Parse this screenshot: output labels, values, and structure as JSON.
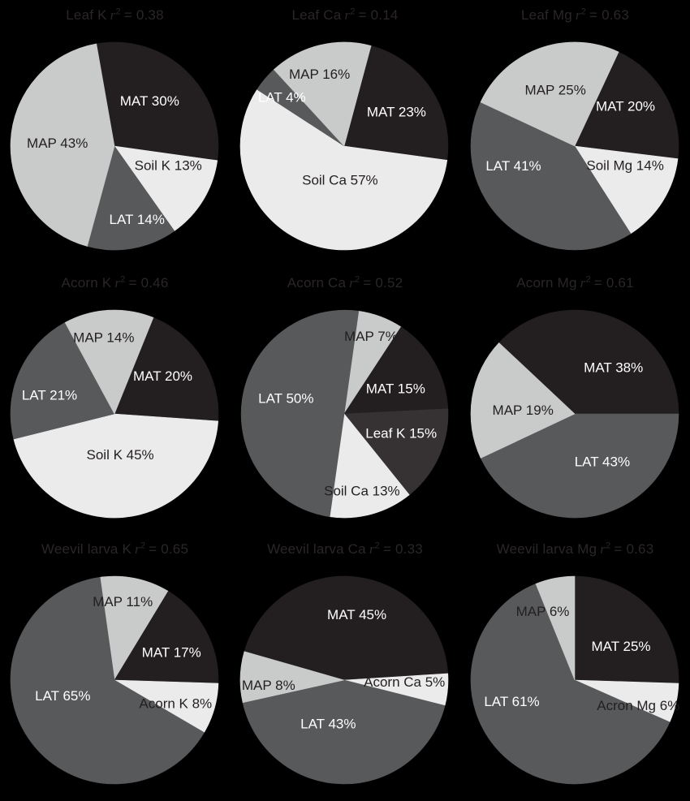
{
  "figure": {
    "background": "#000000",
    "title_color": "#2b2627",
    "label_dark_color": "#231f20",
    "label_light_color": "#ffffff"
  },
  "symbols": {
    "r": "r",
    "sup": "2"
  },
  "palette": {
    "MAT": "#231f20",
    "LAT": "#58595b",
    "MAP": "#c9caca",
    "SOIL": "#ebebec",
    "LEAFK": "#363233"
  },
  "chart_data": [
    {
      "type": "pie",
      "name": "Leaf K",
      "stat": "= 0.38",
      "start_angle": -10,
      "slices": [
        {
          "label": "MAT 30%",
          "value": 30,
          "color": "#231f20",
          "text_color": "#ffffff",
          "label_r": 0.55,
          "label_angle": 38
        },
        {
          "label": "Soil K 13%",
          "value": 13,
          "color": "#ebebec",
          "text_color": "#231f20",
          "label_r": 0.55,
          "label_angle": 110
        },
        {
          "label": "LAT 14%",
          "value": 14,
          "color": "#58595b",
          "text_color": "#ffffff",
          "label_r": 0.74,
          "label_angle": 163
        },
        {
          "label": "MAP 43%",
          "value": 43,
          "color": "#c9caca",
          "text_color": "#231f20",
          "label_r": 0.55,
          "label_angle": 273
        }
      ]
    },
    {
      "type": "pie",
      "name": "Leaf Ca",
      "stat": "= 0.14",
      "start_angle": 15,
      "slices": [
        {
          "label": "MAT 23%",
          "value": 23,
          "color": "#231f20",
          "text_color": "#ffffff",
          "label_r": 0.6,
          "label_angle": 57
        },
        {
          "label": "Soil Ca 57%",
          "value": 57,
          "color": "#ebebec",
          "text_color": "#231f20",
          "label_r": 0.33,
          "label_angle": 187
        },
        {
          "label": "LAT 4%",
          "value": 4,
          "color": "#58595b",
          "text_color": "#ffffff",
          "label_r": 0.76,
          "label_angle": 308
        },
        {
          "label": "MAP 16%",
          "value": 16,
          "color": "#c9caca",
          "text_color": "#231f20",
          "label_r": 0.73,
          "label_angle": 341
        }
      ]
    },
    {
      "type": "pie",
      "name": "Leaf Mg",
      "stat": "= 0.63",
      "start_angle": 25,
      "slices": [
        {
          "label": "MAT 20%",
          "value": 20,
          "color": "#231f20",
          "text_color": "#ffffff",
          "label_r": 0.62,
          "label_angle": 52
        },
        {
          "label": "Soil Mg 14%",
          "value": 14,
          "color": "#ebebec",
          "text_color": "#231f20",
          "label_r": 0.52,
          "label_angle": 111
        },
        {
          "label": "LAT 41%",
          "value": 41,
          "color": "#58595b",
          "text_color": "#ffffff",
          "label_r": 0.62,
          "label_angle": 252
        },
        {
          "label": "MAP 25%",
          "value": 25,
          "color": "#c9caca",
          "text_color": "#231f20",
          "label_r": 0.57,
          "label_angle": 341
        }
      ]
    },
    {
      "type": "pie",
      "name": "Acorn K",
      "stat": "= 0.46",
      "start_angle": 22,
      "slices": [
        {
          "label": "MAT 20%",
          "value": 20,
          "color": "#231f20",
          "text_color": "#ffffff",
          "label_r": 0.59,
          "label_angle": 52
        },
        {
          "label": "Soil K 45%",
          "value": 45,
          "color": "#ebebec",
          "text_color": "#231f20",
          "label_r": 0.4,
          "label_angle": 172
        },
        {
          "label": "LAT 21%",
          "value": 21,
          "color": "#58595b",
          "text_color": "#ffffff",
          "label_r": 0.65,
          "label_angle": 286
        },
        {
          "label": "MAP 14%",
          "value": 14,
          "color": "#c9caca",
          "text_color": "#231f20",
          "label_r": 0.74,
          "label_angle": 352
        }
      ]
    },
    {
      "type": "pie",
      "name": "Acorn Ca",
      "stat": "= 0.52",
      "start_angle": 8,
      "slices": [
        {
          "label": "MAP 7%",
          "value": 7,
          "color": "#c9caca",
          "text_color": "#231f20",
          "label_r": 0.79,
          "label_angle": 19
        },
        {
          "label": "MAT 15%",
          "value": 15,
          "color": "#231f20",
          "text_color": "#ffffff",
          "label_r": 0.55,
          "label_angle": 64
        },
        {
          "label": "Leaf K 15%",
          "value": 15,
          "color": "#363233",
          "text_color": "#ffffff",
          "label_r": 0.58,
          "label_angle": 109
        },
        {
          "label": "Soil Ca 13%",
          "value": 13,
          "color": "#ebebec",
          "text_color": "#231f20",
          "label_r": 0.76,
          "label_angle": 167
        },
        {
          "label": "LAT 50%",
          "value": 50,
          "color": "#58595b",
          "text_color": "#ffffff",
          "label_r": 0.58,
          "label_angle": 285
        }
      ]
    },
    {
      "type": "pie",
      "name": "Acorn Mg",
      "stat": "= 0.61",
      "start_angle": 313.2,
      "slices": [
        {
          "label": "MAT 38%",
          "value": 38,
          "color": "#231f20",
          "text_color": "#ffffff",
          "label_r": 0.58,
          "label_angle": 40
        },
        {
          "label": "LAT 43%",
          "value": 43,
          "color": "#58595b",
          "text_color": "#ffffff",
          "label_r": 0.53,
          "label_angle": 150
        },
        {
          "label": "MAP 19%",
          "value": 19,
          "color": "#c9caca",
          "text_color": "#231f20",
          "label_r": 0.5,
          "label_angle": 274
        }
      ]
    },
    {
      "type": "pie",
      "name": "Weevil larva K",
      "stat": "= 0.65",
      "start_angle": -8,
      "slices": [
        {
          "label": "MAP 11%",
          "value": 11,
          "color": "#c9caca",
          "text_color": "#231f20",
          "label_r": 0.76,
          "label_angle": 6
        },
        {
          "label": "MAT 17%",
          "value": 17,
          "color": "#231f20",
          "text_color": "#ffffff",
          "label_r": 0.61,
          "label_angle": 64
        },
        {
          "label": "Acorn K 8%",
          "value": 8,
          "color": "#ebebec",
          "text_color": "#231f20",
          "label_r": 0.63,
          "label_angle": 111
        },
        {
          "label": "LAT 65%",
          "value": 65,
          "color": "#58595b",
          "text_color": "#ffffff",
          "label_r": 0.52,
          "label_angle": 253
        }
      ]
    },
    {
      "type": "pie",
      "name": "Weevil larva Ca",
      "stat": "= 0.33",
      "start_angle": 286,
      "slices": [
        {
          "label": "MAT 45%",
          "value": 45,
          "color": "#231f20",
          "text_color": "#ffffff",
          "label_r": 0.64,
          "label_angle": 11
        },
        {
          "label": "Acorn Ca 5%",
          "value": 5,
          "color": "#ebebec",
          "text_color": "#231f20",
          "label_r": 0.58,
          "label_angle": 92
        },
        {
          "label": "LAT 43%",
          "value": 43,
          "color": "#58595b",
          "text_color": "#ffffff",
          "label_r": 0.45,
          "label_angle": 200
        },
        {
          "label": "MAP 8%",
          "value": 8,
          "color": "#c9caca",
          "text_color": "#231f20",
          "label_r": 0.73,
          "label_angle": 266
        }
      ]
    },
    {
      "type": "pie",
      "name": "Weevil larva Mg",
      "stat": "= 0.63",
      "start_angle": 0,
      "slices": [
        {
          "label": "MAT 25%",
          "value": 25,
          "color": "#231f20",
          "text_color": "#ffffff",
          "label_r": 0.55,
          "label_angle": 54
        },
        {
          "label": "Acron Mg 6%",
          "value": 6,
          "color": "#ebebec",
          "text_color": "#231f20",
          "label_r": 0.66,
          "label_angle": 112
        },
        {
          "label": "LAT 61%",
          "value": 61,
          "color": "#58595b",
          "text_color": "#ffffff",
          "label_r": 0.64,
          "label_angle": 251
        },
        {
          "label": "MAP 6%",
          "value": 6,
          "color": "#c9caca",
          "text_color": "#231f20",
          "label_r": 0.73,
          "label_angle": 335
        }
      ]
    }
  ]
}
